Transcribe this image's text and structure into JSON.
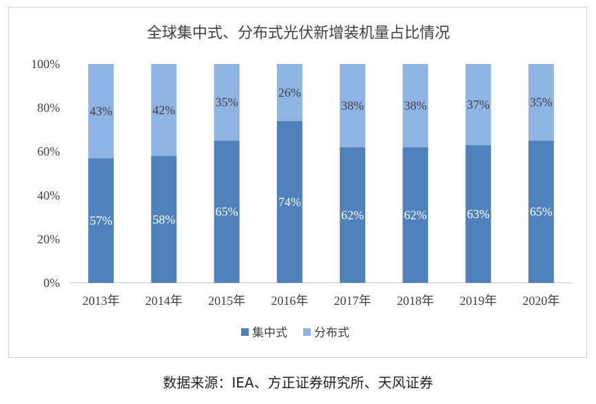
{
  "chart_data": {
    "type": "bar",
    "stacked": true,
    "title": "全球集中式、分布式光伏新增装机量占比情况",
    "categories": [
      "2013年",
      "2014年",
      "2015年",
      "2016年",
      "2017年",
      "2018年",
      "2019年",
      "2020年"
    ],
    "series": [
      {
        "name": "集中式",
        "color": "#4f81bd",
        "values": [
          57,
          58,
          65,
          74,
          62,
          62,
          63,
          65
        ],
        "labels": [
          "57%",
          "58%",
          "65%",
          "74%",
          "62%",
          "62%",
          "63%",
          "65%"
        ]
      },
      {
        "name": "分布式",
        "color": "#8eb4e3",
        "values": [
          43,
          42,
          35,
          26,
          38,
          38,
          37,
          35
        ],
        "labels": [
          "43%",
          "42%",
          "35%",
          "26%",
          "38%",
          "38%",
          "37%",
          "35%"
        ]
      }
    ],
    "ylim": [
      0,
      100
    ],
    "yticks": [
      "0%",
      "20%",
      "40%",
      "60%",
      "80%",
      "100%"
    ],
    "xlabel": "",
    "ylabel": "",
    "grid": false,
    "legend_position": "bottom"
  },
  "source_note": "数据来源：IEA、方正证券研究所、天风证券"
}
